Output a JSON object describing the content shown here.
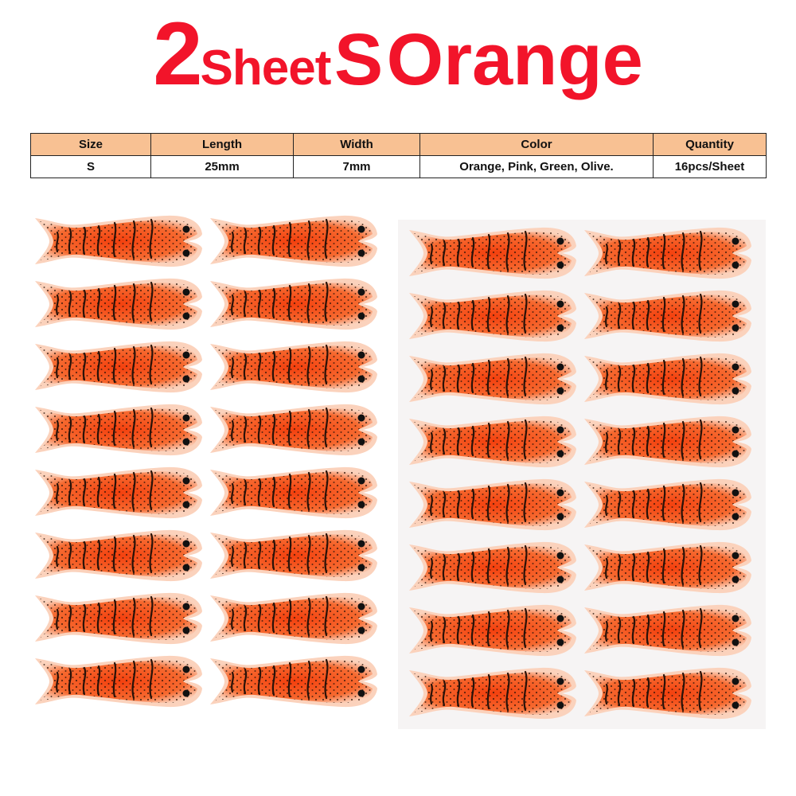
{
  "title": {
    "count": "2",
    "sheet": "Sheet",
    "size": "S",
    "color": "Orange"
  },
  "table": {
    "headers": [
      "Size",
      "Length",
      "Width",
      "Color",
      "Quantity"
    ],
    "row": [
      "S",
      "25mm",
      "7mm",
      "Orange, Pink, Green, Olive.",
      "16pcs/Sheet"
    ]
  },
  "sheets": [
    {
      "columns": 2,
      "rows": 8
    },
    {
      "columns": 2,
      "rows": 8
    }
  ],
  "colors": {
    "title": "#f2142a",
    "header_bg": "#f8c193",
    "lure_body": "#f5521a",
    "lure_edge": "#fbd2bc",
    "spots": "#2a1208"
  }
}
